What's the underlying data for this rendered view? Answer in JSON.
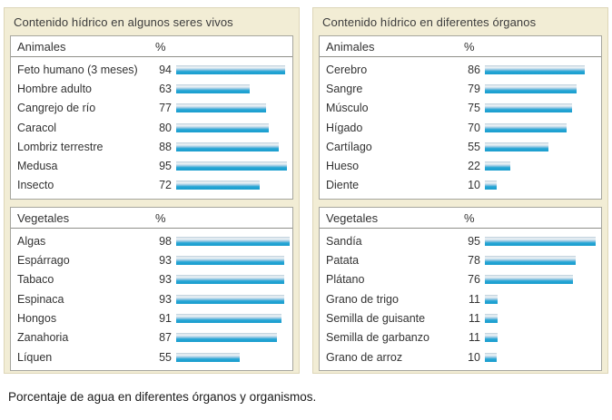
{
  "caption": "Porcentaje de agua en diferentes órganos y organismos.",
  "colors": {
    "panel_bg": "#f2edd5",
    "panel_border": "#ddd6b8",
    "box_bg": "#ffffff",
    "box_border": "#a6a69e",
    "bar_main": "#1ea4d2",
    "bar_light": "#eef3f6",
    "bar_top": "#b9ccd9",
    "text": "#333333"
  },
  "panels": [
    {
      "title": "Contenido hídrico en algunos seres vivos",
      "tables": [
        {
          "header": "Animales",
          "unit": "%",
          "rows": [
            {
              "label": "Feto humano (3 meses)",
              "value": 94
            },
            {
              "label": "Hombre adulto",
              "value": 63
            },
            {
              "label": "Cangrejo de río",
              "value": 77
            },
            {
              "label": "Caracol",
              "value": 80
            },
            {
              "label": "Lombriz terrestre",
              "value": 88
            },
            {
              "label": "Medusa",
              "value": 95
            },
            {
              "label": "Insecto",
              "value": 72
            }
          ]
        },
        {
          "header": "Vegetales",
          "unit": "%",
          "rows": [
            {
              "label": "Algas",
              "value": 98
            },
            {
              "label": "Espárrago",
              "value": 93
            },
            {
              "label": "Tabaco",
              "value": 93
            },
            {
              "label": "Espinaca",
              "value": 93
            },
            {
              "label": "Hongos",
              "value": 91
            },
            {
              "label": "Zanahoria",
              "value": 87
            },
            {
              "label": "Líquen",
              "value": 55
            }
          ]
        }
      ]
    },
    {
      "title": "Contenido hídrico en diferentes órganos",
      "tables": [
        {
          "header": "Animales",
          "unit": "%",
          "rows": [
            {
              "label": "Cerebro",
              "value": 86
            },
            {
              "label": "Sangre",
              "value": 79
            },
            {
              "label": "Músculo",
              "value": 75
            },
            {
              "label": "Hígado",
              "value": 70
            },
            {
              "label": "Cartílago",
              "value": 55
            },
            {
              "label": "Hueso",
              "value": 22
            },
            {
              "label": "Diente",
              "value": 10
            }
          ]
        },
        {
          "header": "Vegetales",
          "unit": "%",
          "rows": [
            {
              "label": "Sandía",
              "value": 95
            },
            {
              "label": "Patata",
              "value": 78
            },
            {
              "label": "Plátano",
              "value": 76
            },
            {
              "label": "Grano de trigo",
              "value": 11
            },
            {
              "label": "Semilla de guisante",
              "value": 11
            },
            {
              "label": "Semilla de garbanzo",
              "value": 11
            },
            {
              "label": "Grano de arroz",
              "value": 10
            }
          ]
        }
      ]
    }
  ],
  "chart_data": [
    {
      "type": "bar",
      "title": "Contenido hídrico en algunos seres vivos — Animales",
      "categories": [
        "Feto humano (3 meses)",
        "Hombre adulto",
        "Cangrejo de río",
        "Caracol",
        "Lombriz terrestre",
        "Medusa",
        "Insecto"
      ],
      "values": [
        94,
        63,
        77,
        80,
        88,
        95,
        72
      ],
      "xlabel": "%",
      "ylabel": "",
      "xlim": [
        0,
        100
      ],
      "orientation": "horizontal",
      "grid": false,
      "legend": false
    },
    {
      "type": "bar",
      "title": "Contenido hídrico en algunos seres vivos — Vegetales",
      "categories": [
        "Algas",
        "Espárrago",
        "Tabaco",
        "Espinaca",
        "Hongos",
        "Zanahoria",
        "Líquen"
      ],
      "values": [
        98,
        93,
        93,
        93,
        91,
        87,
        55
      ],
      "xlabel": "%",
      "ylabel": "",
      "xlim": [
        0,
        100
      ],
      "orientation": "horizontal",
      "grid": false,
      "legend": false
    },
    {
      "type": "bar",
      "title": "Contenido hídrico en diferentes órganos — Animales",
      "categories": [
        "Cerebro",
        "Sangre",
        "Músculo",
        "Hígado",
        "Cartílago",
        "Hueso",
        "Diente"
      ],
      "values": [
        86,
        79,
        75,
        70,
        55,
        22,
        10
      ],
      "xlabel": "%",
      "ylabel": "",
      "xlim": [
        0,
        100
      ],
      "orientation": "horizontal",
      "grid": false,
      "legend": false
    },
    {
      "type": "bar",
      "title": "Contenido hídrico en diferentes órganos — Vegetales",
      "categories": [
        "Sandía",
        "Patata",
        "Plátano",
        "Grano de trigo",
        "Semilla de guisante",
        "Semilla de garbanzo",
        "Grano de arroz"
      ],
      "values": [
        95,
        78,
        76,
        11,
        11,
        11,
        10
      ],
      "xlabel": "%",
      "ylabel": "",
      "xlim": [
        0,
        100
      ],
      "orientation": "horizontal",
      "grid": false,
      "legend": false
    }
  ]
}
